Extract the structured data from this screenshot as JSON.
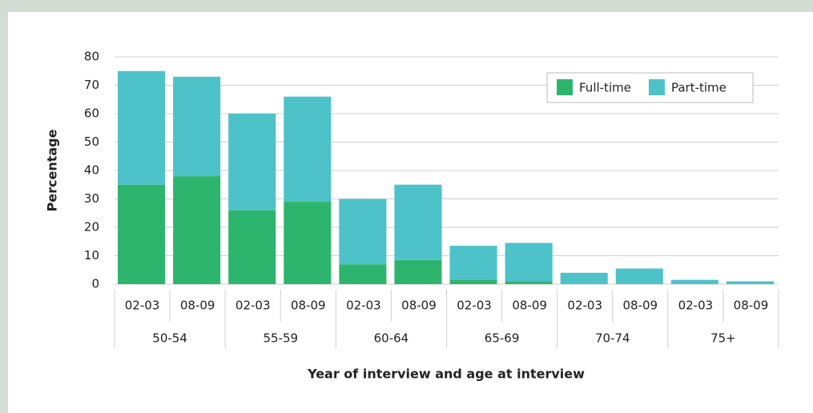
{
  "chart_data": {
    "type": "stacked_bar",
    "y_label": "Percentage",
    "x_label": "Year of interview and age at interview",
    "categories": [
      "02-03",
      "08-09",
      "02-03",
      "08-09",
      "02-03",
      "08-09",
      "02-03",
      "08-09",
      "02-03",
      "08-09",
      "02-03",
      "08-09"
    ],
    "groups": [
      "50-54",
      "55-59",
      "60-64",
      "65-69",
      "70-74",
      "75+"
    ],
    "series": [
      {
        "name": "Full-time",
        "color": "#2eb56d",
        "values": [
          35,
          38,
          26,
          29,
          7,
          8.5,
          1.5,
          1,
          0,
          0,
          0,
          0
        ]
      },
      {
        "name": "Part-time",
        "color": "#4ec2c9",
        "values": [
          40,
          35,
          34,
          37,
          23,
          26.5,
          12,
          13.5,
          4,
          5.5,
          1.5,
          1
        ]
      }
    ],
    "ylim": [
      0,
      80
    ],
    "yticks": [
      0,
      10,
      20,
      30,
      40,
      50,
      60,
      70,
      80
    ],
    "grid": true,
    "legend": "top-right"
  }
}
